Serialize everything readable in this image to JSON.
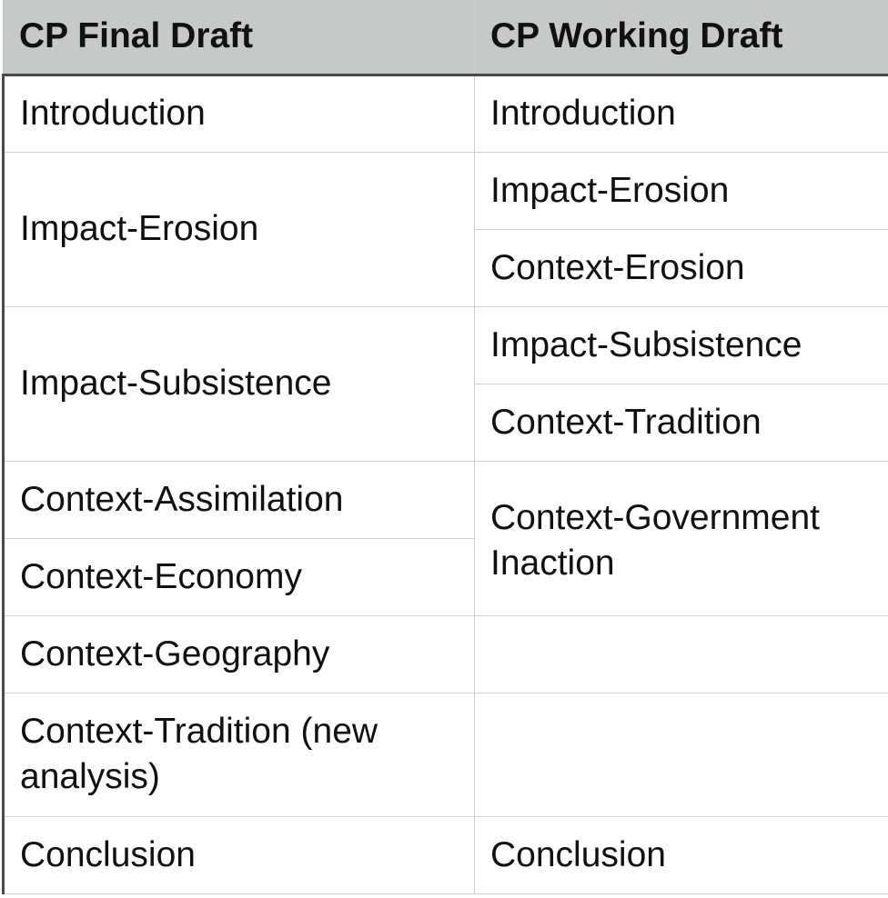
{
  "table": {
    "headers": [
      "CP Final Draft",
      "CP Working Draft"
    ],
    "final_draft": [
      "Introduction",
      "Impact-Erosion",
      "Impact-Subsistence",
      "Context-Assimilation",
      "Context-Economy",
      "Context-Geography",
      "Context-Tradition (new analysis)",
      "Conclusion"
    ],
    "working_draft": [
      "Introduction",
      "Impact-Erosion",
      "Context-Erosion",
      "Impact-Subsistence",
      "Context-Tradition",
      "Context-Government Inaction",
      "Conclusion"
    ]
  }
}
